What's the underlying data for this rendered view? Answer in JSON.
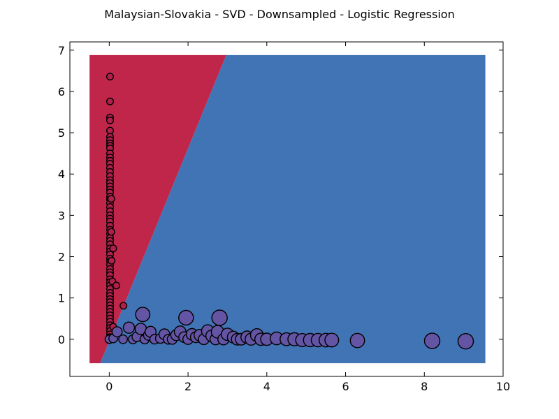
{
  "chart_data": {
    "type": "scatter",
    "title": "Malaysian-Slovakia - SVD - Downsampled - Logistic Regression",
    "xlabel": "",
    "ylabel": "",
    "xlim": [
      -1,
      10
    ],
    "ylim": [
      -0.9,
      7.2
    ],
    "xticks": [
      0,
      2,
      4,
      6,
      8,
      10
    ],
    "yticks": [
      0,
      1,
      2,
      3,
      4,
      5,
      6,
      7
    ],
    "grid": false,
    "colors": {
      "region_class_0": "#c0264a",
      "region_class_1": "#4174b5",
      "points_class_0": "#b0204b",
      "points_class_1": "#6454a4",
      "marker_edge": "#000000"
    },
    "decision_regions": {
      "x_range": [
        -0.5,
        9.55
      ],
      "y_range": [
        -0.58,
        6.88
      ],
      "boundary_line": [
        [
          -0.23,
          -0.58
        ],
        [
          2.97,
          6.88
        ]
      ]
    },
    "series": [
      {
        "class": 0,
        "points": [
          [
            0.02,
            6.36
          ],
          [
            0.02,
            5.76
          ],
          [
            0.02,
            5.37
          ],
          [
            0.02,
            5.3
          ],
          [
            0.02,
            5.05
          ],
          [
            0.02,
            4.9
          ],
          [
            0.02,
            4.82
          ],
          [
            0.02,
            4.74
          ],
          [
            0.02,
            4.68
          ],
          [
            0.02,
            4.62
          ],
          [
            0.02,
            4.5
          ],
          [
            0.02,
            4.4
          ],
          [
            0.02,
            4.32
          ],
          [
            0.02,
            4.25
          ],
          [
            0.02,
            4.15
          ],
          [
            0.02,
            4.05
          ],
          [
            0.02,
            3.95
          ],
          [
            0.02,
            3.85
          ],
          [
            0.02,
            3.78
          ],
          [
            0.02,
            3.7
          ],
          [
            0.02,
            3.62
          ],
          [
            0.02,
            3.55
          ],
          [
            0.02,
            3.45
          ],
          [
            0.02,
            3.38
          ],
          [
            0.02,
            3.3
          ],
          [
            0.02,
            3.2
          ],
          [
            0.02,
            3.1
          ],
          [
            0.02,
            3.0
          ],
          [
            0.02,
            2.92
          ],
          [
            0.02,
            2.85
          ],
          [
            0.02,
            2.75
          ],
          [
            0.02,
            2.65
          ],
          [
            0.02,
            2.55
          ],
          [
            0.02,
            2.45
          ],
          [
            0.02,
            2.38
          ],
          [
            0.02,
            2.3
          ],
          [
            0.02,
            2.2
          ],
          [
            0.02,
            2.12
          ],
          [
            0.02,
            2.05
          ],
          [
            0.02,
            1.95
          ],
          [
            0.02,
            1.88
          ],
          [
            0.02,
            1.8
          ],
          [
            0.02,
            1.7
          ],
          [
            0.02,
            1.62
          ],
          [
            0.02,
            1.55
          ],
          [
            0.02,
            1.45
          ],
          [
            0.02,
            1.38
          ],
          [
            0.02,
            1.3
          ],
          [
            0.02,
            1.22
          ],
          [
            0.02,
            1.12
          ],
          [
            0.02,
            1.05
          ],
          [
            0.02,
            0.97
          ],
          [
            0.02,
            0.9
          ],
          [
            0.02,
            0.82
          ],
          [
            0.02,
            0.74
          ],
          [
            0.02,
            0.66
          ],
          [
            0.02,
            0.58
          ],
          [
            0.02,
            0.5
          ],
          [
            0.02,
            0.42
          ],
          [
            0.02,
            0.34
          ],
          [
            0.02,
            0.27
          ],
          [
            0.02,
            0.2
          ],
          [
            0.02,
            0.12
          ],
          [
            0.02,
            0.05
          ],
          [
            0.05,
            3.4
          ],
          [
            0.05,
            2.6
          ],
          [
            0.06,
            1.9
          ],
          [
            0.08,
            1.4
          ],
          [
            0.1,
            2.2
          ],
          [
            0.18,
            1.3
          ],
          [
            0.36,
            0.81
          ],
          [
            0.1,
            0.3
          ]
        ]
      },
      {
        "class": 1,
        "points": [
          [
            0.0,
            0.0
          ],
          [
            0.1,
            0.02
          ],
          [
            0.2,
            0.18
          ],
          [
            0.35,
            0.0
          ],
          [
            0.5,
            0.28
          ],
          [
            0.6,
            0.0
          ],
          [
            0.7,
            0.06
          ],
          [
            0.8,
            0.25
          ],
          [
            0.85,
            0.6
          ],
          [
            0.9,
            0.0
          ],
          [
            1.0,
            0.1
          ],
          [
            1.05,
            0.18
          ],
          [
            1.15,
            0.0
          ],
          [
            1.3,
            0.02
          ],
          [
            1.4,
            0.12
          ],
          [
            1.5,
            0.0
          ],
          [
            1.6,
            0.0
          ],
          [
            1.7,
            0.1
          ],
          [
            1.8,
            0.18
          ],
          [
            1.9,
            0.05
          ],
          [
            1.95,
            0.52
          ],
          [
            2.0,
            0.0
          ],
          [
            2.1,
            0.12
          ],
          [
            2.2,
            0.05
          ],
          [
            2.3,
            0.1
          ],
          [
            2.4,
            0.0
          ],
          [
            2.5,
            0.2
          ],
          [
            2.6,
            0.08
          ],
          [
            2.7,
            0.0
          ],
          [
            2.75,
            0.18
          ],
          [
            2.8,
            0.52
          ],
          [
            2.9,
            0.0
          ],
          [
            3.0,
            0.12
          ],
          [
            3.15,
            0.05
          ],
          [
            3.25,
            0.0
          ],
          [
            3.35,
            0.0
          ],
          [
            3.5,
            0.05
          ],
          [
            3.6,
            0.0
          ],
          [
            3.75,
            0.1
          ],
          [
            3.85,
            0.0
          ],
          [
            4.0,
            0.0
          ],
          [
            4.25,
            0.02
          ],
          [
            4.5,
            0.0
          ],
          [
            4.7,
            0.0
          ],
          [
            4.9,
            -0.02
          ],
          [
            5.1,
            -0.02
          ],
          [
            5.3,
            -0.02
          ],
          [
            5.5,
            -0.02
          ],
          [
            5.65,
            -0.02
          ],
          [
            6.3,
            -0.03
          ],
          [
            8.2,
            -0.04
          ],
          [
            9.05,
            -0.05
          ]
        ]
      }
    ]
  }
}
